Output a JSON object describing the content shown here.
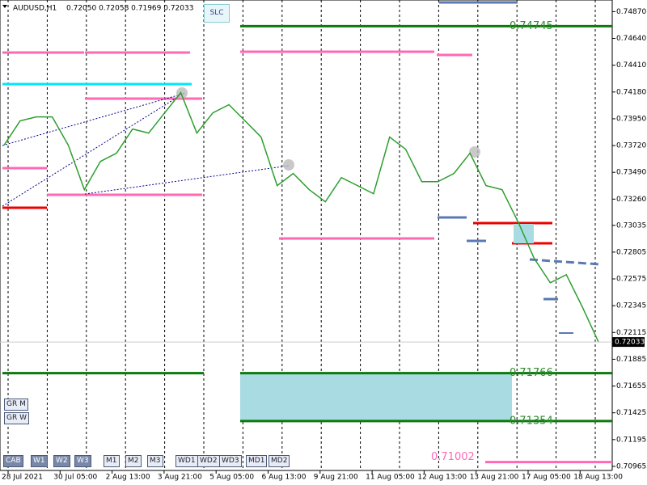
{
  "header": {
    "symbol": "AUDUSD,H1",
    "ohlc": "0.72050 0.72058 0.71969 0.72033"
  },
  "buttons": {
    "top": [
      "SLC"
    ],
    "left": [
      "GR M",
      "GR W"
    ],
    "bottom": [
      "CAB",
      "W1",
      "W2",
      "W3",
      "M1",
      "M2",
      "M3",
      "WD1",
      "WD2",
      "WD3",
      "MD1",
      "MD2"
    ]
  },
  "chart_data": {
    "type": "line",
    "ylim": [
      0.7093,
      0.7497
    ],
    "yticks": [
      {
        "value": 0.7487,
        "label": "0.74870"
      },
      {
        "value": 0.7464,
        "label": "0.74640"
      },
      {
        "value": 0.7441,
        "label": "0.74410"
      },
      {
        "value": 0.7418,
        "label": "0.74180"
      },
      {
        "value": 0.7395,
        "label": "0.73950"
      },
      {
        "value": 0.7372,
        "label": "0.73720"
      },
      {
        "value": 0.7349,
        "label": "0.73490"
      },
      {
        "value": 0.7326,
        "label": "0.73260"
      },
      0.73035,
      0.72805,
      0.72575,
      0.72345,
      0.72115,
      0.71885,
      0.71655,
      0.71425,
      0.71195,
      0.70965
    ],
    "current_price": 0.72033,
    "time_labels": [
      "28 Jul 2021",
      "30 Jul 05:00",
      "2 Aug 13:00",
      "3 Aug 21:00",
      "5 Aug 05:00",
      "6 Aug 13:00",
      "9 Aug 21:00",
      "11 Aug 05:00",
      "12 Aug 13:00",
      "13 Aug 21:00",
      "17 Aug 05:00",
      "18 Aug 13:00"
    ],
    "series": [
      {
        "color": "#2e9e2e",
        "values": [
          0.73723,
          0.73932,
          0.73966,
          0.73966,
          0.73723,
          0.73341,
          0.73584,
          0.73654,
          0.73862,
          0.73827,
          0.74001,
          0.74175,
          0.73827,
          0.74001,
          0.74071,
          0.73932,
          0.73793,
          0.73376,
          0.7348,
          0.73341,
          0.73237,
          0.73445,
          0.73376,
          0.73306,
          0.73793,
          0.73688,
          0.7341,
          0.7341,
          0.7348,
          0.73654,
          0.73376,
          0.73341,
          0.73063,
          0.7275,
          0.72542,
          0.72611,
          0.72333,
          0.72033
        ]
      }
    ],
    "levels": [
      0.74745,
      0.71766,
      0.71354,
      0.71002
    ]
  }
}
